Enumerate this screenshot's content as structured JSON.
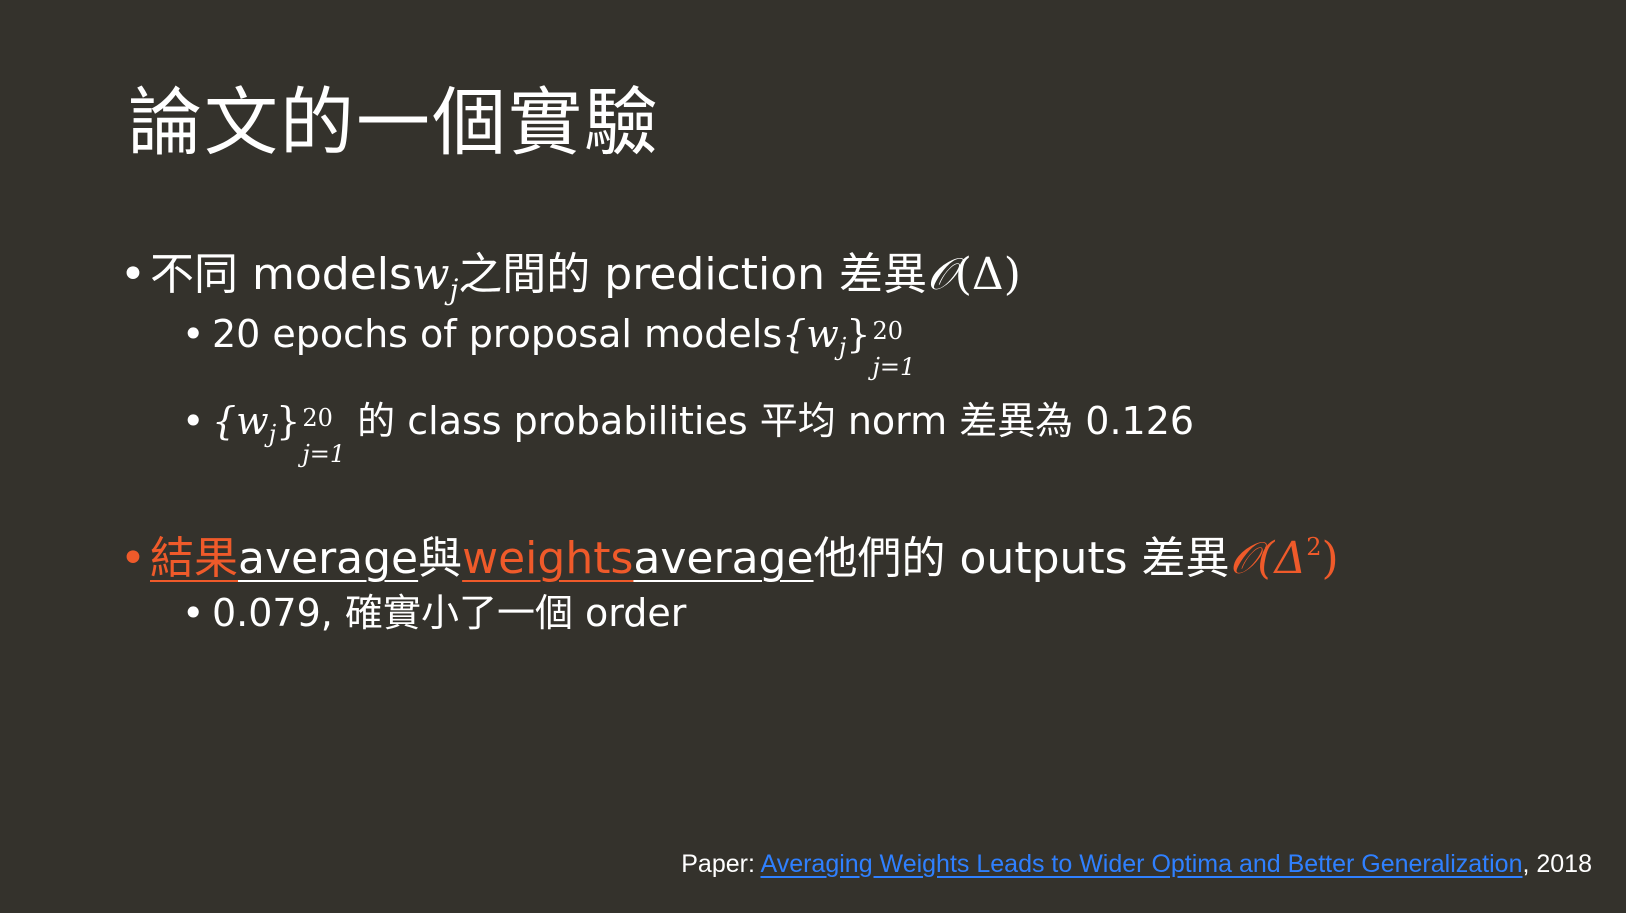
{
  "title": "論文的一個實驗",
  "bullet_char": "•",
  "b1": {
    "t1": "不同 models ",
    "w": "w",
    "j": "j",
    "t2": " 之間的 prediction 差異 ",
    "o": "𝒪",
    "t3": "(Δ)"
  },
  "s1": {
    "t1": "20 epochs of proposal models ",
    "set": "{w",
    "j": "j",
    "close": "}",
    "sup": "20",
    "sub": "j=1"
  },
  "s2": {
    "set": "{w",
    "j": "j",
    "close": "}",
    "sup": "20",
    "sub": "j=1",
    "t1": " 的 class probabilities 平均 norm 差異為 0.126"
  },
  "b2": {
    "a1": "結果",
    "a2": " average",
    "t1": " 與 ",
    "a3": "weights",
    "a4": " average",
    "t2": " 他們的 outputs 差異 ",
    "o": "𝒪(Δ",
    "sq": "2",
    "close": ")"
  },
  "s3": {
    "t1": "0.079, 確實小了一個 order"
  },
  "footer": {
    "prefix": "Paper: ",
    "link": "Averaging Weights Leads to Wider Optima and Better Generalization",
    "suffix": ", 2018"
  },
  "colors": {
    "background": "#34322c",
    "text": "#ffffff",
    "accent": "#ef5a2a",
    "link": "#2f80ff"
  }
}
